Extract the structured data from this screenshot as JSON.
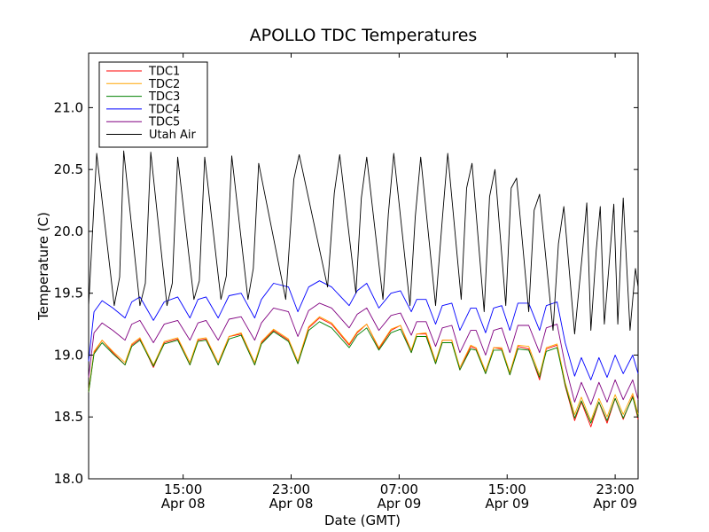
{
  "chart_data": {
    "type": "line",
    "title": "APOLLO TDC Temperatures",
    "xlabel": "Date (GMT)",
    "ylabel": "Temperature (C)",
    "xlim": [
      8.0,
      48.7
    ],
    "ylim": [
      18.0,
      21.44
    ],
    "grid": false,
    "legend_position": "top-left",
    "y_ticks": [
      {
        "value": 18.0,
        "label": "18.0"
      },
      {
        "value": 18.5,
        "label": "18.5"
      },
      {
        "value": 19.0,
        "label": "19.0"
      },
      {
        "value": 19.5,
        "label": "19.5"
      },
      {
        "value": 20.0,
        "label": "20.0"
      },
      {
        "value": 20.5,
        "label": "20.5"
      },
      {
        "value": 21.0,
        "label": "21.0"
      }
    ],
    "x_ticks": [
      {
        "value": 15,
        "time": "15:00",
        "date": "Apr 08"
      },
      {
        "value": 23,
        "time": "23:00",
        "date": "Apr 08"
      },
      {
        "value": 31,
        "time": "07:00",
        "date": "Apr 09"
      },
      {
        "value": 39,
        "time": "15:00",
        "date": "Apr 09"
      },
      {
        "value": 47,
        "time": "23:00",
        "date": "Apr 09"
      }
    ],
    "x_units": "hours since Apr 08 00:00 GMT",
    "series": [
      {
        "name": "TDC1",
        "color": "#ff0000",
        "x": [
          8.0,
          8.4,
          9.0,
          9.8,
          10.7,
          11.2,
          11.8,
          12.8,
          13.6,
          14.6,
          15.5,
          16.1,
          16.7,
          17.6,
          18.4,
          19.3,
          20.3,
          20.8,
          21.7,
          22.8,
          23.5,
          24.3,
          25.1,
          26.0,
          27.3,
          27.9,
          28.6,
          29.5,
          30.4,
          31.1,
          31.9,
          32.3,
          33.0,
          33.7,
          34.2,
          34.9,
          35.5,
          36.3,
          36.7,
          37.4,
          38.0,
          38.6,
          39.2,
          39.8,
          40.6,
          41.4,
          41.9,
          42.7,
          43.3,
          44.0,
          44.5,
          45.2,
          45.8,
          46.4,
          47.0,
          47.6,
          48.3,
          48.7
        ],
        "y": [
          18.7,
          19.02,
          19.12,
          19.02,
          18.92,
          19.08,
          19.13,
          18.9,
          19.1,
          19.13,
          18.92,
          19.12,
          19.13,
          18.92,
          19.15,
          19.17,
          18.92,
          19.1,
          19.2,
          19.12,
          18.93,
          19.22,
          19.3,
          19.25,
          19.08,
          19.18,
          19.25,
          19.05,
          19.2,
          19.24,
          19.02,
          19.17,
          19.17,
          18.93,
          19.12,
          19.12,
          18.88,
          19.07,
          19.05,
          18.85,
          19.06,
          19.05,
          18.84,
          19.07,
          19.05,
          18.8,
          19.05,
          19.08,
          18.75,
          18.47,
          18.62,
          18.42,
          18.62,
          18.45,
          18.65,
          18.48,
          18.67,
          18.48
        ]
      },
      {
        "name": "TDC2",
        "color": "#ffa500",
        "x": [
          8.0,
          8.4,
          9.0,
          9.8,
          10.7,
          11.2,
          11.8,
          12.8,
          13.6,
          14.6,
          15.5,
          16.1,
          16.7,
          17.6,
          18.4,
          19.3,
          20.3,
          20.8,
          21.7,
          22.8,
          23.5,
          24.3,
          25.1,
          26.0,
          27.3,
          27.9,
          28.6,
          29.5,
          30.4,
          31.1,
          31.9,
          32.3,
          33.0,
          33.7,
          34.2,
          34.9,
          35.5,
          36.3,
          36.7,
          37.4,
          38.0,
          38.6,
          39.2,
          39.8,
          40.6,
          41.4,
          41.9,
          42.7,
          43.3,
          44.0,
          44.5,
          45.2,
          45.8,
          46.4,
          47.0,
          47.6,
          48.3,
          48.7
        ],
        "y": [
          18.72,
          19.03,
          19.12,
          19.03,
          18.94,
          19.09,
          19.14,
          18.92,
          19.11,
          19.14,
          18.94,
          19.13,
          19.14,
          18.94,
          19.15,
          19.18,
          18.94,
          19.11,
          19.21,
          19.13,
          18.95,
          19.23,
          19.31,
          19.26,
          19.09,
          19.19,
          19.25,
          19.06,
          19.21,
          19.24,
          19.04,
          19.17,
          19.18,
          18.95,
          19.12,
          19.12,
          18.9,
          19.08,
          19.06,
          18.87,
          19.06,
          19.06,
          18.86,
          19.08,
          19.07,
          18.84,
          19.06,
          19.09,
          18.78,
          18.52,
          18.66,
          18.47,
          18.65,
          18.5,
          18.68,
          18.52,
          18.69,
          18.52
        ]
      },
      {
        "name": "TDC3",
        "color": "#008000",
        "x": [
          8.0,
          8.4,
          9.0,
          9.8,
          10.7,
          11.2,
          11.8,
          12.8,
          13.6,
          14.6,
          15.5,
          16.1,
          16.7,
          17.6,
          18.4,
          19.3,
          20.3,
          20.8,
          21.7,
          22.8,
          23.5,
          24.3,
          25.1,
          26.0,
          27.3,
          27.9,
          28.6,
          29.5,
          30.4,
          31.1,
          31.9,
          32.3,
          33.0,
          33.7,
          34.2,
          34.9,
          35.5,
          36.3,
          36.7,
          37.4,
          38.0,
          38.6,
          39.2,
          39.8,
          40.6,
          41.4,
          41.9,
          42.7,
          43.3,
          44.0,
          44.5,
          45.2,
          45.8,
          46.4,
          47.0,
          47.6,
          48.3,
          48.7
        ],
        "y": [
          18.7,
          19.01,
          19.1,
          19.01,
          18.92,
          19.07,
          19.12,
          18.91,
          19.09,
          19.12,
          18.92,
          19.11,
          19.12,
          18.92,
          19.13,
          19.16,
          18.92,
          19.09,
          19.19,
          19.11,
          18.93,
          19.2,
          19.27,
          19.22,
          19.06,
          19.16,
          19.22,
          19.04,
          19.18,
          19.21,
          19.02,
          19.15,
          19.15,
          18.93,
          19.1,
          19.1,
          18.88,
          19.05,
          19.04,
          18.85,
          19.04,
          19.04,
          18.84,
          19.05,
          19.04,
          18.82,
          19.03,
          19.06,
          18.76,
          18.49,
          18.63,
          18.45,
          18.62,
          18.47,
          18.65,
          18.49,
          18.66,
          18.5
        ]
      },
      {
        "name": "TDC4",
        "color": "#0000ff",
        "x": [
          8.0,
          8.4,
          9.0,
          9.8,
          10.7,
          11.2,
          11.8,
          12.8,
          13.6,
          14.6,
          15.5,
          16.1,
          16.7,
          17.6,
          18.4,
          19.3,
          20.3,
          20.8,
          21.7,
          22.8,
          23.5,
          24.3,
          25.1,
          26.0,
          27.3,
          27.9,
          28.6,
          29.5,
          30.4,
          31.1,
          31.9,
          32.3,
          33.0,
          33.7,
          34.2,
          34.9,
          35.5,
          36.3,
          36.7,
          37.4,
          38.0,
          38.6,
          39.2,
          39.8,
          40.6,
          41.4,
          41.9,
          42.7,
          43.3,
          44.0,
          44.5,
          45.2,
          45.8,
          46.4,
          47.0,
          47.6,
          48.3,
          48.7
        ],
        "y": [
          18.95,
          19.35,
          19.44,
          19.38,
          19.3,
          19.43,
          19.47,
          19.28,
          19.43,
          19.47,
          19.3,
          19.45,
          19.47,
          19.3,
          19.48,
          19.5,
          19.3,
          19.45,
          19.58,
          19.55,
          19.35,
          19.55,
          19.6,
          19.55,
          19.4,
          19.52,
          19.58,
          19.38,
          19.5,
          19.52,
          19.35,
          19.45,
          19.45,
          19.25,
          19.4,
          19.42,
          19.2,
          19.38,
          19.38,
          19.18,
          19.38,
          19.4,
          19.2,
          19.42,
          19.42,
          19.2,
          19.4,
          19.43,
          19.1,
          18.83,
          18.98,
          18.8,
          18.98,
          18.82,
          19.0,
          18.85,
          19.0,
          18.85
        ]
      },
      {
        "name": "TDC5",
        "color": "#800080",
        "x": [
          8.0,
          8.4,
          9.0,
          9.8,
          10.7,
          11.2,
          11.8,
          12.8,
          13.6,
          14.6,
          15.5,
          16.1,
          16.7,
          17.6,
          18.4,
          19.3,
          20.3,
          20.8,
          21.7,
          22.8,
          23.5,
          24.3,
          25.1,
          26.0,
          27.3,
          27.9,
          28.6,
          29.5,
          30.4,
          31.1,
          31.9,
          32.3,
          33.0,
          33.7,
          34.2,
          34.9,
          35.5,
          36.3,
          36.7,
          37.4,
          38.0,
          38.6,
          39.2,
          39.8,
          40.6,
          41.4,
          41.9,
          42.7,
          43.3,
          44.0,
          44.5,
          45.2,
          45.8,
          46.4,
          47.0,
          47.6,
          48.3,
          48.7
        ],
        "y": [
          18.82,
          19.18,
          19.26,
          19.2,
          19.12,
          19.25,
          19.28,
          19.1,
          19.25,
          19.28,
          19.12,
          19.26,
          19.28,
          19.12,
          19.29,
          19.31,
          19.12,
          19.26,
          19.38,
          19.35,
          19.15,
          19.36,
          19.42,
          19.38,
          19.22,
          19.33,
          19.38,
          19.2,
          19.32,
          19.34,
          19.16,
          19.27,
          19.27,
          19.07,
          19.22,
          19.24,
          19.02,
          19.2,
          19.2,
          19.0,
          19.2,
          19.22,
          19.02,
          19.24,
          19.24,
          19.02,
          19.22,
          19.25,
          18.92,
          18.62,
          18.78,
          18.6,
          18.78,
          18.62,
          18.8,
          18.64,
          18.8,
          18.64
        ]
      },
      {
        "name": "Utah Air",
        "color": "#000000",
        "x": [
          8.0,
          8.6,
          9.9,
          10.3,
          10.6,
          11.8,
          12.2,
          12.6,
          13.8,
          14.2,
          14.6,
          15.8,
          16.2,
          16.6,
          17.8,
          18.2,
          18.6,
          19.8,
          20.2,
          20.6,
          22.6,
          23.2,
          23.6,
          25.7,
          26.2,
          26.6,
          27.8,
          28.2,
          28.6,
          29.8,
          30.2,
          30.6,
          31.8,
          32.2,
          32.6,
          33.7,
          34.2,
          34.6,
          35.6,
          36.0,
          36.4,
          37.3,
          37.7,
          38.1,
          38.9,
          39.3,
          39.7,
          40.6,
          41.0,
          41.4,
          42.4,
          42.8,
          43.2,
          44.0,
          44.6,
          44.9,
          45.2,
          45.6,
          45.9,
          46.2,
          46.6,
          46.9,
          47.2,
          47.6,
          48.1,
          48.5,
          48.7
        ],
        "y": [
          19.4,
          20.63,
          19.4,
          19.63,
          20.65,
          19.4,
          19.58,
          20.64,
          19.4,
          19.58,
          20.6,
          19.45,
          19.6,
          20.6,
          19.45,
          19.64,
          20.61,
          19.45,
          19.7,
          20.55,
          19.45,
          20.42,
          20.62,
          19.55,
          20.31,
          20.62,
          19.5,
          20.27,
          20.6,
          19.45,
          20.14,
          20.63,
          19.4,
          20.12,
          20.6,
          19.4,
          20.1,
          20.63,
          19.45,
          20.35,
          20.55,
          19.35,
          20.28,
          20.5,
          19.4,
          20.35,
          20.43,
          19.35,
          20.17,
          20.3,
          19.2,
          19.9,
          20.2,
          19.17,
          19.85,
          20.23,
          19.2,
          19.85,
          20.2,
          19.25,
          19.8,
          20.22,
          19.25,
          20.27,
          19.2,
          19.7,
          19.55
        ]
      }
    ]
  }
}
